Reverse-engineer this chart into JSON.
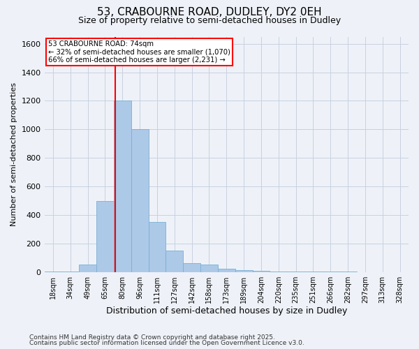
{
  "title_line1": "53, CRABOURNE ROAD, DUDLEY, DY2 0EH",
  "title_line2": "Size of property relative to semi-detached houses in Dudley",
  "xlabel": "Distribution of semi-detached houses by size in Dudley",
  "ylabel": "Number of semi-detached properties",
  "categories": [
    "18sqm",
    "34sqm",
    "49sqm",
    "65sqm",
    "80sqm",
    "96sqm",
    "111sqm",
    "127sqm",
    "142sqm",
    "158sqm",
    "173sqm",
    "189sqm",
    "204sqm",
    "220sqm",
    "235sqm",
    "251sqm",
    "266sqm",
    "282sqm",
    "297sqm",
    "313sqm",
    "328sqm"
  ],
  "values": [
    2,
    2,
    50,
    500,
    1200,
    1000,
    350,
    150,
    60,
    50,
    25,
    15,
    10,
    5,
    2,
    2,
    2,
    2,
    0,
    0,
    0
  ],
  "bar_color": "#adc9e8",
  "bar_edge_color": "#7aafd4",
  "annotation_line1": "53 CRABOURNE ROAD: 74sqm",
  "annotation_line2": "← 32% of semi-detached houses are smaller (1,070)",
  "annotation_line3": "66% of semi-detached houses are larger (2,231) →",
  "ylim": [
    0,
    1650
  ],
  "yticks": [
    0,
    200,
    400,
    600,
    800,
    1000,
    1200,
    1400,
    1600
  ],
  "footnote_line1": "Contains HM Land Registry data © Crown copyright and database right 2025.",
  "footnote_line2": "Contains public sector information licensed under the Open Government Licence v3.0.",
  "background_color": "#eef2f8",
  "plot_bg_color": "#eef2f8",
  "red_line_index": 3.6
}
